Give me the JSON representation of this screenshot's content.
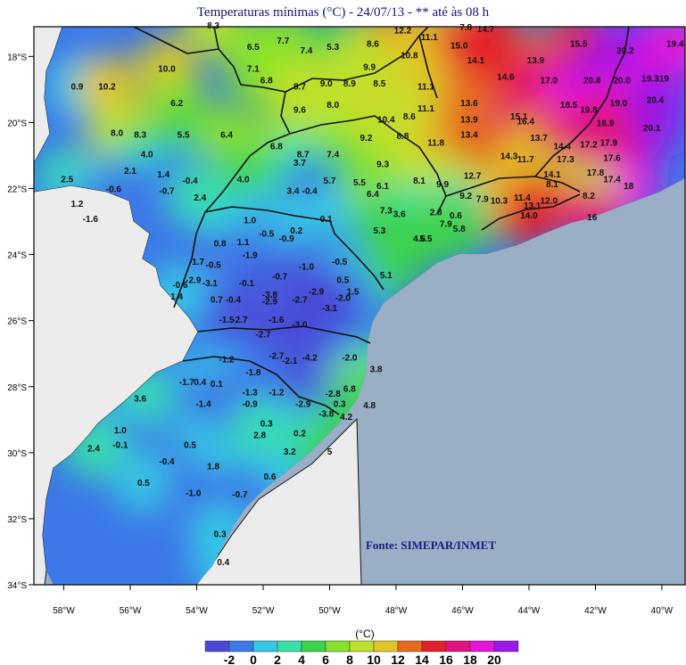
{
  "title": "Temperaturas mínimas (°C) - 24/07/13 - ** até às 08 h",
  "source": "Fonte: SIMEPAR/INMET",
  "colorbar": {
    "unit": "(°C)",
    "colors": [
      "#4a48d8",
      "#3c78e8",
      "#34c8e4",
      "#38e0a8",
      "#3cd24c",
      "#86e22c",
      "#bee12c",
      "#e2c428",
      "#e66a22",
      "#e41e2a",
      "#e0127e",
      "#e414d8",
      "#9a18e8"
    ],
    "labels": [
      "-2",
      "0",
      "2",
      "4",
      "6",
      "8",
      "10",
      "12",
      "14",
      "16",
      "18",
      "20"
    ]
  },
  "lon_ticks": [
    "58°W",
    "56°W",
    "54°W",
    "52°W",
    "50°W",
    "48°W",
    "46°W",
    "44°W",
    "42°W",
    "40°W"
  ],
  "lat_ticks": [
    "18°S",
    "20°S",
    "22°S",
    "24°S",
    "26°S",
    "28°S",
    "30°S",
    "32°S",
    "34°S"
  ],
  "colors": {
    "ocean": "#9aaec6",
    "land_outside": "#ececec",
    "border": "#111111"
  },
  "stations": [
    {
      "v": "8.3",
      "lon": -53.5,
      "lat": -17.05
    },
    {
      "v": "6.5",
      "lon": -52.3,
      "lat": -17.7
    },
    {
      "v": "7.7",
      "lon": -51.4,
      "lat": -17.5
    },
    {
      "v": "7.4",
      "lon": -50.7,
      "lat": -17.8
    },
    {
      "v": "5.3",
      "lon": -49.9,
      "lat": -17.7
    },
    {
      "v": "8.6",
      "lon": -48.7,
      "lat": -17.6
    },
    {
      "v": "12.2",
      "lon": -47.8,
      "lat": -17.2
    },
    {
      "v": "11.1",
      "lon": -47.0,
      "lat": -17.4
    },
    {
      "v": "7.8",
      "lon": -45.9,
      "lat": -17.1
    },
    {
      "v": "14.7",
      "lon": -45.3,
      "lat": -17.15
    },
    {
      "v": "10.0",
      "lon": -54.9,
      "lat": -18.35
    },
    {
      "v": "7.1",
      "lon": -52.3,
      "lat": -18.35
    },
    {
      "v": "15.0",
      "lon": -46.1,
      "lat": -17.65
    },
    {
      "v": "15.5",
      "lon": -42.5,
      "lat": -17.6
    },
    {
      "v": "20.2",
      "lon": -41.1,
      "lat": -17.8
    },
    {
      "v": "19.4",
      "lon": -39.6,
      "lat": -17.6
    },
    {
      "v": "9.9",
      "lon": -48.8,
      "lat": -18.3
    },
    {
      "v": "10.8",
      "lon": -47.6,
      "lat": -17.95
    },
    {
      "v": "14.1",
      "lon": -45.6,
      "lat": -18.1
    },
    {
      "v": "13.9",
      "lon": -43.8,
      "lat": -18.1
    },
    {
      "v": "0.9",
      "lon": -57.6,
      "lat": -18.9
    },
    {
      "v": "10.2",
      "lon": -56.7,
      "lat": -18.9
    },
    {
      "v": "6.8",
      "lon": -51.9,
      "lat": -18.7
    },
    {
      "v": "8.7",
      "lon": -50.9,
      "lat": -18.9
    },
    {
      "v": "9.0",
      "lon": -50.1,
      "lat": -18.8
    },
    {
      "v": "8.9",
      "lon": -49.4,
      "lat": -18.8
    },
    {
      "v": "8.5",
      "lon": -48.5,
      "lat": -18.8
    },
    {
      "v": "11.1",
      "lon": -47.1,
      "lat": -18.9
    },
    {
      "v": "14.6",
      "lon": -44.7,
      "lat": -18.6
    },
    {
      "v": "17.0",
      "lon": -43.4,
      "lat": -18.7
    },
    {
      "v": "20.8",
      "lon": -42.1,
      "lat": -18.7
    },
    {
      "v": "20.0",
      "lon": -41.2,
      "lat": -18.7
    },
    {
      "v": "19.319",
      "lon": -40.2,
      "lat": -18.65
    },
    {
      "v": "6.2",
      "lon": -54.6,
      "lat": -19.4
    },
    {
      "v": "9.6",
      "lon": -50.9,
      "lat": -19.6
    },
    {
      "v": "8.0",
      "lon": -49.9,
      "lat": -19.45
    },
    {
      "v": "11.1",
      "lon": -47.1,
      "lat": -19.55
    },
    {
      "v": "13.6",
      "lon": -45.8,
      "lat": -19.4
    },
    {
      "v": "18.5",
      "lon": -42.8,
      "lat": -19.45
    },
    {
      "v": "19.8",
      "lon": -42.2,
      "lat": -19.6
    },
    {
      "v": "19.0",
      "lon": -41.3,
      "lat": -19.4
    },
    {
      "v": "20.4",
      "lon": -40.2,
      "lat": -19.3
    },
    {
      "v": "10.4",
      "lon": -48.3,
      "lat": -19.9
    },
    {
      "v": "8.6",
      "lon": -47.6,
      "lat": -19.8
    },
    {
      "v": "15.1",
      "lon": -44.3,
      "lat": -19.8
    },
    {
      "v": "16.4",
      "lon": -44.1,
      "lat": -19.95
    },
    {
      "v": "13.9",
      "lon": -45.8,
      "lat": -19.9
    },
    {
      "v": "8.0",
      "lon": -56.4,
      "lat": -20.3
    },
    {
      "v": "8.3",
      "lon": -55.7,
      "lat": -20.35
    },
    {
      "v": "5.5",
      "lon": -54.4,
      "lat": -20.35
    },
    {
      "v": "6.4",
      "lon": -53.1,
      "lat": -20.35
    },
    {
      "v": "9.2",
      "lon": -48.9,
      "lat": -20.45
    },
    {
      "v": "8.8",
      "lon": -47.8,
      "lat": -20.4
    },
    {
      "v": "11.8",
      "lon": -46.8,
      "lat": -20.6
    },
    {
      "v": "13.4",
      "lon": -45.8,
      "lat": -20.35
    },
    {
      "v": "13.7",
      "lon": -43.7,
      "lat": -20.45
    },
    {
      "v": "16.9",
      "lon": -41.7,
      "lat": -20.0
    },
    {
      "v": "20.1",
      "lon": -40.3,
      "lat": -20.15
    },
    {
      "v": "6.8",
      "lon": -51.6,
      "lat": -20.7
    },
    {
      "v": "8.7",
      "lon": -50.8,
      "lat": -20.95
    },
    {
      "v": "7.4",
      "lon": -49.9,
      "lat": -20.95
    },
    {
      "v": "14.4",
      "lon": -43.0,
      "lat": -20.7
    },
    {
      "v": "17.2",
      "lon": -42.2,
      "lat": -20.65
    },
    {
      "v": "17.9",
      "lon": -41.6,
      "lat": -20.6
    },
    {
      "v": "4.0",
      "lon": -55.5,
      "lat": -20.95
    },
    {
      "v": "3.7",
      "lon": -50.9,
      "lat": -21.2
    },
    {
      "v": "9.3",
      "lon": -48.4,
      "lat": -21.25
    },
    {
      "v": "14.3",
      "lon": -44.6,
      "lat": -21.0
    },
    {
      "v": "11.7",
      "lon": -44.1,
      "lat": -21.1
    },
    {
      "v": "17.3",
      "lon": -42.9,
      "lat": -21.1
    },
    {
      "v": "17.6",
      "lon": -41.5,
      "lat": -21.05
    },
    {
      "v": "2.1",
      "lon": -56.0,
      "lat": -21.45
    },
    {
      "v": "1.4",
      "lon": -55.0,
      "lat": -21.55
    },
    {
      "v": "4.0",
      "lon": -52.6,
      "lat": -21.7
    },
    {
      "v": "5.7",
      "lon": -50.0,
      "lat": -21.75
    },
    {
      "v": "5.5",
      "lon": -49.1,
      "lat": -21.8
    },
    {
      "v": "6.1",
      "lon": -48.4,
      "lat": -21.9
    },
    {
      "v": "8.1",
      "lon": -47.3,
      "lat": -21.75
    },
    {
      "v": "12.7",
      "lon": -45.7,
      "lat": -21.6
    },
    {
      "v": "14.1",
      "lon": -43.3,
      "lat": -21.55
    },
    {
      "v": "17.8",
      "lon": -42.0,
      "lat": -21.5
    },
    {
      "v": "17.4",
      "lon": -41.5,
      "lat": -21.7
    },
    {
      "v": "2.5",
      "lon": -57.9,
      "lat": -21.7
    },
    {
      "v": "-0.4",
      "lon": -54.2,
      "lat": -21.75
    },
    {
      "v": "8.1",
      "lon": -43.3,
      "lat": -21.85
    },
    {
      "v": "9.9",
      "lon": -46.6,
      "lat": -21.85
    },
    {
      "v": "18",
      "lon": -41.0,
      "lat": -21.9
    },
    {
      "v": "-0.6",
      "lon": -56.5,
      "lat": -22.0
    },
    {
      "v": "-0.7",
      "lon": -54.9,
      "lat": -22.05
    },
    {
      "v": "3.4",
      "lon": -51.1,
      "lat": -22.05
    },
    {
      "v": "-0.4",
      "lon": -50.6,
      "lat": -22.05
    },
    {
      "v": "6.4",
      "lon": -48.7,
      "lat": -22.15
    },
    {
      "v": "9.2",
      "lon": -45.9,
      "lat": -22.2
    },
    {
      "v": "7.9",
      "lon": -45.4,
      "lat": -22.3
    },
    {
      "v": "10.3",
      "lon": -44.9,
      "lat": -22.35
    },
    {
      "v": "11.4",
      "lon": -44.2,
      "lat": -22.25
    },
    {
      "v": "8.2",
      "lon": -42.2,
      "lat": -22.2
    },
    {
      "v": "2.4",
      "lon": -53.9,
      "lat": -22.25
    },
    {
      "v": "1.2",
      "lon": -57.6,
      "lat": -22.45
    },
    {
      "v": "13.1",
      "lon": -43.9,
      "lat": -22.5
    },
    {
      "v": "12.0",
      "lon": -43.4,
      "lat": -22.35
    },
    {
      "v": "7.3",
      "lon": -48.3,
      "lat": -22.65
    },
    {
      "v": "3.6",
      "lon": -47.9,
      "lat": -22.75
    },
    {
      "v": "2.8",
      "lon": -46.8,
      "lat": -22.7
    },
    {
      "v": "14.0",
      "lon": -44.0,
      "lat": -22.8
    },
    {
      "v": "0.6",
      "lon": -46.2,
      "lat": -22.8
    },
    {
      "v": "16",
      "lon": -42.1,
      "lat": -22.85
    },
    {
      "v": "-1.6",
      "lon": -57.2,
      "lat": -22.9
    },
    {
      "v": "1.0",
      "lon": -52.4,
      "lat": -22.95
    },
    {
      "v": "0.1",
      "lon": -50.1,
      "lat": -22.9
    },
    {
      "v": "7.9",
      "lon": -46.5,
      "lat": -23.05
    },
    {
      "v": "5.8",
      "lon": -46.1,
      "lat": -23.2
    },
    {
      "v": "5.3",
      "lon": -48.5,
      "lat": -23.25
    },
    {
      "v": "-0.5",
      "lon": -51.9,
      "lat": -23.35
    },
    {
      "v": "-0.9",
      "lon": -51.3,
      "lat": -23.5
    },
    {
      "v": "0.2",
      "lon": -51.0,
      "lat": -23.25
    },
    {
      "v": "4.6",
      "lon": -47.3,
      "lat": -23.5
    },
    {
      "v": "5.5",
      "lon": -47.1,
      "lat": -23.5
    },
    {
      "v": "0.8",
      "lon": -53.3,
      "lat": -23.65
    },
    {
      "v": "1.1",
      "lon": -52.6,
      "lat": -23.6
    },
    {
      "v": "-1.9",
      "lon": -52.4,
      "lat": -24.0
    },
    {
      "v": "-1.7",
      "lon": -54.0,
      "lat": -24.2
    },
    {
      "v": "-0.5",
      "lon": -53.5,
      "lat": -24.3
    },
    {
      "v": "-1.0",
      "lon": -50.7,
      "lat": -24.35
    },
    {
      "v": "-0.5",
      "lon": -49.7,
      "lat": -24.2
    },
    {
      "v": "-0.7",
      "lon": -51.5,
      "lat": -24.65
    },
    {
      "v": "-2.9",
      "lon": -54.1,
      "lat": -24.75
    },
    {
      "v": "-3.1",
      "lon": -53.6,
      "lat": -24.85
    },
    {
      "v": "-0.1",
      "lon": -52.5,
      "lat": -24.85
    },
    {
      "v": "0.5",
      "lon": -49.6,
      "lat": -24.75
    },
    {
      "v": "5.1",
      "lon": -48.3,
      "lat": -24.6
    },
    {
      "v": "-0.6",
      "lon": -54.5,
      "lat": -24.9
    },
    {
      "v": "-2.9",
      "lon": -50.4,
      "lat": -25.1
    },
    {
      "v": "1.5",
      "lon": -49.3,
      "lat": -25.1
    },
    {
      "v": "1.4",
      "lon": -54.6,
      "lat": -25.25
    },
    {
      "v": "0.7",
      "lon": -53.4,
      "lat": -25.35
    },
    {
      "v": "-0.4",
      "lon": -52.9,
      "lat": -25.35
    },
    {
      "v": "-3.8",
      "lon": -51.8,
      "lat": -25.2
    },
    {
      "v": "-2.7",
      "lon": -50.9,
      "lat": -25.35
    },
    {
      "v": "-2.0",
      "lon": -49.6,
      "lat": -25.3
    },
    {
      "v": "-2.9",
      "lon": -51.8,
      "lat": -25.4
    },
    {
      "v": "-3.1",
      "lon": -50.0,
      "lat": -25.6
    },
    {
      "v": "-1.5",
      "lon": -53.1,
      "lat": -25.95
    },
    {
      "v": "-2.7",
      "lon": -52.7,
      "lat": -25.95
    },
    {
      "v": "-1.6",
      "lon": -51.6,
      "lat": -25.95
    },
    {
      "v": "-3.0",
      "lon": -50.9,
      "lat": -26.1
    },
    {
      "v": "-2.7",
      "lon": -52.0,
      "lat": -26.4
    },
    {
      "v": "-1.2",
      "lon": -53.1,
      "lat": -27.15
    },
    {
      "v": "-2.7",
      "lon": -51.6,
      "lat": -27.05
    },
    {
      "v": "-2.1",
      "lon": -51.2,
      "lat": -27.2
    },
    {
      "v": "-4.2",
      "lon": -50.6,
      "lat": -27.1
    },
    {
      "v": "-2.0",
      "lon": -49.4,
      "lat": -27.1
    },
    {
      "v": "3.8",
      "lon": -48.6,
      "lat": -27.45
    },
    {
      "v": "-1.8",
      "lon": -52.3,
      "lat": -27.55
    },
    {
      "v": "-1.7",
      "lon": -54.3,
      "lat": -27.85
    },
    {
      "v": "0.4",
      "lon": -53.9,
      "lat": -27.85
    },
    {
      "v": "0.1",
      "lon": -53.4,
      "lat": -27.9
    },
    {
      "v": "-1.3",
      "lon": -52.4,
      "lat": -28.15
    },
    {
      "v": "-1.2",
      "lon": -51.6,
      "lat": -28.15
    },
    {
      "v": "-2.8",
      "lon": -49.9,
      "lat": -28.2
    },
    {
      "v": "6.8",
      "lon": -49.4,
      "lat": -28.05
    },
    {
      "v": "3.6",
      "lon": -55.7,
      "lat": -28.35
    },
    {
      "v": "-1.4",
      "lon": -53.8,
      "lat": -28.5
    },
    {
      "v": "-0.9",
      "lon": -52.4,
      "lat": -28.5
    },
    {
      "v": "-2.9",
      "lon": -50.8,
      "lat": -28.5
    },
    {
      "v": "0.3",
      "lon": -49.7,
      "lat": -28.5
    },
    {
      "v": "4.8",
      "lon": -48.8,
      "lat": -28.55
    },
    {
      "v": "-3.8",
      "lon": -50.1,
      "lat": -28.8
    },
    {
      "v": "4.2",
      "lon": -49.5,
      "lat": -28.9
    },
    {
      "v": "0.3",
      "lon": -51.9,
      "lat": -29.1
    },
    {
      "v": "1.0",
      "lon": -56.3,
      "lat": -29.3
    },
    {
      "v": "2.8",
      "lon": -52.1,
      "lat": -29.45
    },
    {
      "v": "0.2",
      "lon": -50.9,
      "lat": -29.4
    },
    {
      "v": "-0.1",
      "lon": -56.3,
      "lat": -29.75
    },
    {
      "v": "0.5",
      "lon": -54.2,
      "lat": -29.75
    },
    {
      "v": "2.4",
      "lon": -57.1,
      "lat": -29.85
    },
    {
      "v": "3.2",
      "lon": -51.2,
      "lat": -29.95
    },
    {
      "v": "5",
      "lon": -50.0,
      "lat": -29.95
    },
    {
      "v": "-0.4",
      "lon": -54.9,
      "lat": -30.25
    },
    {
      "v": "1.8",
      "lon": -53.5,
      "lat": -30.4
    },
    {
      "v": "0.6",
      "lon": -51.8,
      "lat": -30.7
    },
    {
      "v": "0.5",
      "lon": -55.6,
      "lat": -30.9
    },
    {
      "v": "-1.0",
      "lon": -54.1,
      "lat": -31.2
    },
    {
      "v": "-0.7",
      "lon": -52.7,
      "lat": -31.25
    },
    {
      "v": "0.3",
      "lon": -53.3,
      "lat": -32.45
    },
    {
      "v": "0.4",
      "lon": -53.2,
      "lat": -33.3
    }
  ]
}
